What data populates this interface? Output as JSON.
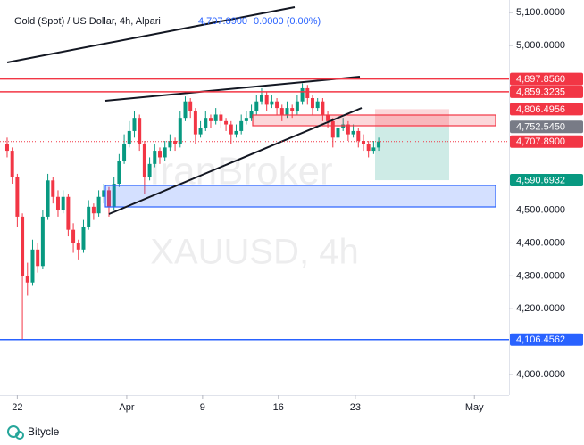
{
  "chart_data": {
    "type": "candlestick",
    "title": "Gold (Spot) / US Dollar, 4h, Alpari",
    "quote": "4,707.8900",
    "change": "0.0000 (0.00%)",
    "watermark": "IranBroker",
    "symbol_watermark": "XAUUSD, 4h",
    "footer": "Bitycle",
    "up_color": "#089981",
    "down_color": "#f23645",
    "open": [
      4700,
      4680,
      4600,
      4480,
      4300,
      4280,
      4380,
      4330,
      4480,
      4590,
      4540,
      4500,
      4540,
      4440,
      4400,
      4380,
      4450,
      4510,
      4490,
      4540,
      4560,
      4510,
      4580,
      4650,
      4700,
      4740,
      4780,
      4700,
      4600,
      4640,
      4680,
      4660,
      4690,
      4710,
      4700,
      4780,
      4830,
      4800,
      4730,
      4750,
      4780,
      4770,
      4790,
      4770,
      4760,
      4730,
      4740,
      4770,
      4780,
      4800,
      4830,
      4850,
      4820,
      4830,
      4810,
      4790,
      4810,
      4800,
      4830,
      4870,
      4840,
      4810,
      4830,
      4790,
      4770,
      4720,
      4750,
      4760,
      4730,
      4740,
      4710,
      4700,
      4680,
      4690
    ],
    "high": [
      4720,
      4690,
      4610,
      4490,
      4340,
      4410,
      4400,
      4500,
      4610,
      4600,
      4560,
      4560,
      4550,
      4460,
      4410,
      4470,
      4530,
      4520,
      4560,
      4580,
      4570,
      4600,
      4670,
      4730,
      4770,
      4800,
      4790,
      4710,
      4660,
      4700,
      4690,
      4710,
      4730,
      4720,
      4800,
      4845,
      4840,
      4810,
      4770,
      4800,
      4790,
      4810,
      4800,
      4780,
      4770,
      4760,
      4790,
      4800,
      4820,
      4850,
      4870,
      4860,
      4850,
      4840,
      4820,
      4830,
      4820,
      4850,
      4885,
      4880,
      4850,
      4840,
      4840,
      4800,
      4780,
      4770,
      4780,
      4770,
      4760,
      4750,
      4730,
      4710,
      4710,
      4720
    ],
    "low": [
      4660,
      4580,
      4450,
      4106,
      4240,
      4270,
      4310,
      4320,
      4470,
      4520,
      4480,
      4490,
      4420,
      4370,
      4350,
      4370,
      4440,
      4470,
      4480,
      4520,
      4480,
      4500,
      4570,
      4640,
      4690,
      4720,
      4680,
      4550,
      4590,
      4630,
      4640,
      4650,
      4680,
      4680,
      4690,
      4770,
      4780,
      4700,
      4720,
      4740,
      4750,
      4760,
      4750,
      4740,
      4700,
      4720,
      4730,
      4760,
      4770,
      4790,
      4820,
      4800,
      4810,
      4790,
      4770,
      4780,
      4780,
      4790,
      4820,
      4820,
      4790,
      4800,
      4770,
      4750,
      4690,
      4710,
      4740,
      4710,
      4720,
      4690,
      4680,
      4660,
      4670,
      4680
    ],
    "close": [
      4680,
      4600,
      4480,
      4300,
      4280,
      4380,
      4330,
      4480,
      4590,
      4540,
      4500,
      4540,
      4440,
      4400,
      4380,
      4450,
      4510,
      4490,
      4540,
      4560,
      4510,
      4580,
      4650,
      4700,
      4740,
      4780,
      4700,
      4600,
      4640,
      4680,
      4660,
      4690,
      4710,
      4700,
      4780,
      4830,
      4800,
      4730,
      4750,
      4780,
      4770,
      4790,
      4770,
      4760,
      4730,
      4740,
      4770,
      4780,
      4800,
      4830,
      4850,
      4820,
      4830,
      4810,
      4790,
      4810,
      4800,
      4830,
      4870,
      4840,
      4810,
      4830,
      4790,
      4770,
      4720,
      4750,
      4760,
      4730,
      4740,
      4710,
      4700,
      4680,
      4690,
      4708
    ],
    "xlim": [
      -1.4,
      98.6
    ],
    "xticks": [
      {
        "value": 2,
        "label": "22"
      },
      {
        "value": 23.5,
        "label": "Apr"
      },
      {
        "value": 38.4,
        "label": "9"
      },
      {
        "value": 53.3,
        "label": "16"
      },
      {
        "value": 68.4,
        "label": "23"
      },
      {
        "value": 91.8,
        "label": "May"
      }
    ],
    "ylim": [
      3938,
      5138
    ],
    "yticks": [
      {
        "value": 5100,
        "label": "5,100.0000"
      },
      {
        "value": 5000,
        "label": "5,000.0000"
      },
      {
        "value": 4500,
        "label": "4,500.0000"
      },
      {
        "value": 4400,
        "label": "4,400.0000"
      },
      {
        "value": 4300,
        "label": "4,300.0000"
      },
      {
        "value": 4200,
        "label": "4,200.0000"
      },
      {
        "value": 4000,
        "label": "4,000.0000"
      }
    ],
    "levels": [
      {
        "value": 4897.856,
        "label": "4,897.8560",
        "color": "#f23645",
        "line": "solid"
      },
      {
        "value": 4859.3235,
        "label": "4,859.3235",
        "color": "#f23645",
        "line": "solid"
      },
      {
        "value": 4806.4956,
        "label": "4,806.4956",
        "color": "#f23645"
      },
      {
        "value": 4752.545,
        "label": "4,752.5450",
        "color": "#787b86"
      },
      {
        "value": 4707.89,
        "label": "4,707.8900",
        "color": "#f23645",
        "line": "dotted"
      },
      {
        "value": 4590.6932,
        "label": "4,590.6932",
        "color": "#089981"
      },
      {
        "value": 4106.4562,
        "label": "4,106.4562",
        "color": "#2962ff",
        "line": "solid"
      }
    ]
  }
}
